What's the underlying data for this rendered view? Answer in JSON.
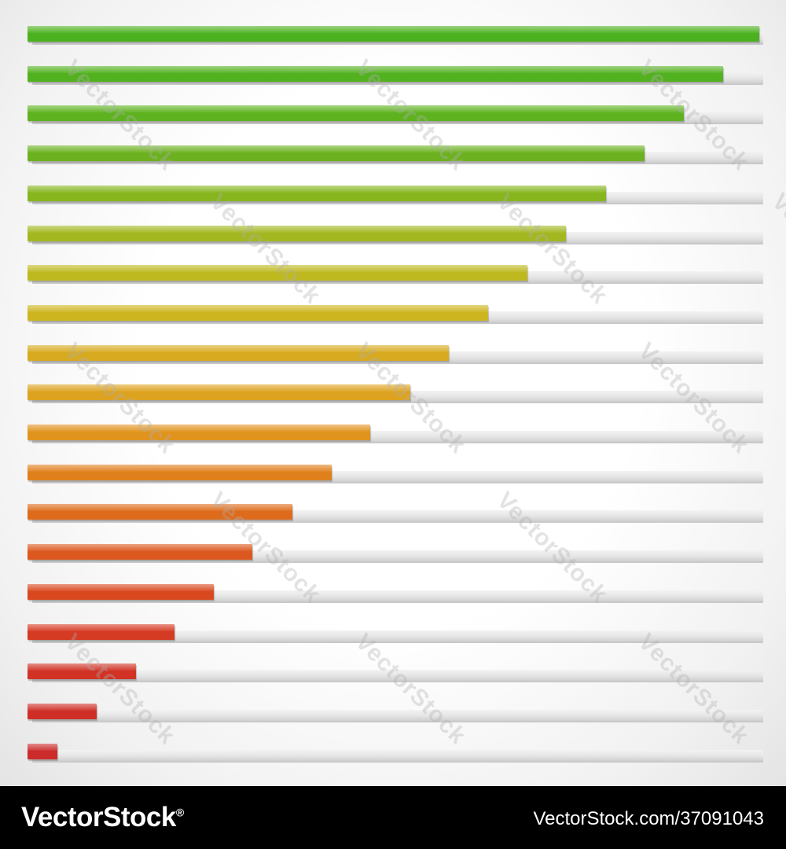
{
  "levels": [
    {
      "value": 0.995,
      "color": "#4cb11f"
    },
    {
      "value": 0.945,
      "color": "#52b11f"
    },
    {
      "value": 0.892,
      "color": "#5eb21f"
    },
    {
      "value": 0.839,
      "color": "#6cb11f"
    },
    {
      "value": 0.786,
      "color": "#86b51e"
    },
    {
      "value": 0.732,
      "color": "#a3b720"
    },
    {
      "value": 0.679,
      "color": "#bfb920"
    },
    {
      "value": 0.626,
      "color": "#cdb51f"
    },
    {
      "value": 0.573,
      "color": "#d7aa1f"
    },
    {
      "value": 0.52,
      "color": "#dda21f"
    },
    {
      "value": 0.466,
      "color": "#e0931d"
    },
    {
      "value": 0.413,
      "color": "#e0801c"
    },
    {
      "value": 0.36,
      "color": "#de6b1c"
    },
    {
      "value": 0.306,
      "color": "#dc581e"
    },
    {
      "value": 0.253,
      "color": "#d9481f"
    },
    {
      "value": 0.2,
      "color": "#d53a22"
    },
    {
      "value": 0.147,
      "color": "#d13224"
    },
    {
      "value": 0.094,
      "color": "#cf2e27"
    },
    {
      "value": 0.041,
      "color": "#cc2b2b"
    }
  ],
  "watermark": "VectorStock",
  "footer": {
    "brand": "VectorStock",
    "registered_mark": "®",
    "image_id": "VectorStock.com/37091043"
  }
}
